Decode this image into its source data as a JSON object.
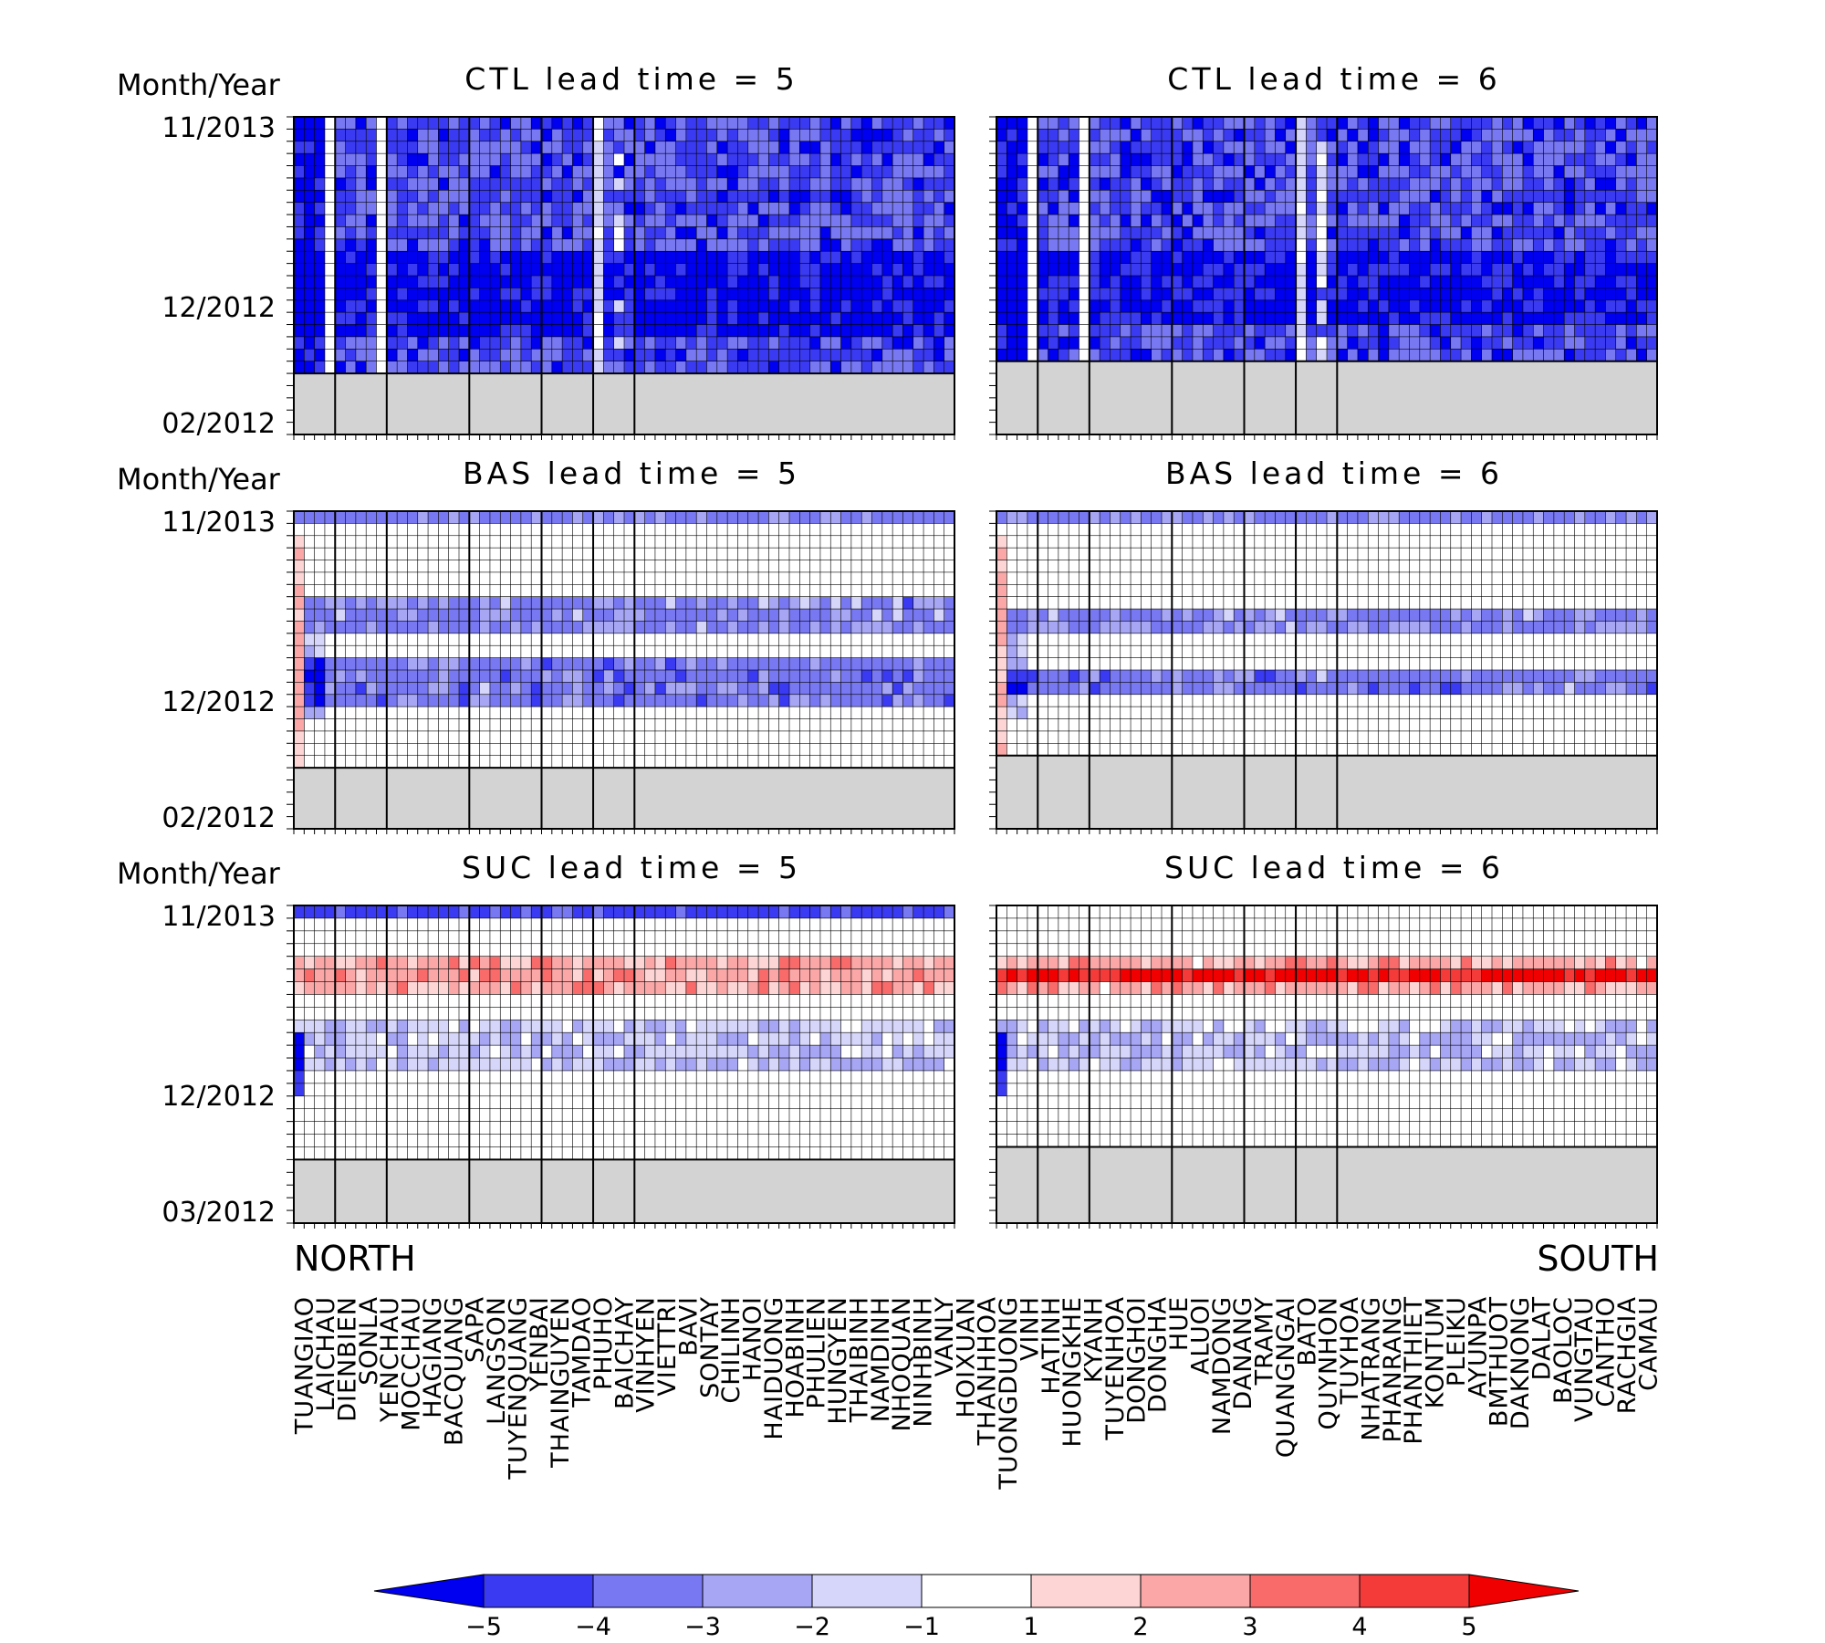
{
  "chart_data": {
    "type": "heatmap",
    "ylabel": "Month/Year",
    "x_region_left": "NORTH",
    "x_region_right": "SOUTH",
    "stations": [
      "TUANGIAO",
      "LAICHAU",
      "DIENBIEN",
      "SONLA",
      "YENCHAU",
      "MOCCHAU",
      "HAGIANG",
      "BACQUANG",
      "SAPA",
      "LANGSON",
      "TUYENQUANG",
      "YENBAI",
      "THAINGUYEN",
      "TAMDAO",
      "PHUHO",
      "BAICHAY",
      "VINHYEN",
      "VIETTRI",
      "BAVI",
      "SONTAY",
      "CHILINH",
      "HANOI",
      "HAIDUONG",
      "HOABINH",
      "PHULIEN",
      "HUNGYEN",
      "THAIBINH",
      "NAMDINH",
      "NHOQUAN",
      "NINHBINH",
      "VANLY",
      "HOIXUAN",
      "THANHHOA",
      "TUONGDUONG",
      "VINH",
      "HATINH",
      "HUONGKHE",
      "KYANH",
      "TUYENHOA",
      "DONGHOI",
      "DONGHA",
      "HUE",
      "ALUOI",
      "NAMDONG",
      "DANANG",
      "TRAMY",
      "QUANGNGAI",
      "BATO",
      "QUYNHON",
      "TUYHOA",
      "NHATRANG",
      "PHANRANG",
      "PHANTHIET",
      "KONTUM",
      "PLEIKU",
      "AYUNPA",
      "BMTHUOT",
      "DAKNONG",
      "DALAT",
      "BAOLOC",
      "VUNGTAU",
      "CANTHO",
      "RACHGIA",
      "CAMAU"
    ],
    "region_boundaries_after_station": [
      3,
      8,
      16,
      23,
      28,
      32
    ],
    "colorbar": {
      "ticks": [
        "-5",
        "-4",
        "-3",
        "-2",
        "-1",
        "1",
        "2",
        "3",
        "4",
        "5"
      ],
      "colors": [
        "#0000f0",
        "#3a3af2",
        "#7878f3",
        "#a6a6f5",
        "#d6d6fa",
        "#ffffff",
        "#fdd5d5",
        "#fba7a7",
        "#f96b6b",
        "#f53a3a",
        "#f00000"
      ]
    },
    "panels": [
      {
        "title": "CTL  lead  time  =  5",
        "ytick_top": "11/2013",
        "ytick_mid": "12/2012",
        "ytick_bottom": "02/2012",
        "months_with_data": 21,
        "months_missing": 5,
        "pattern": "ctl",
        "seed": 11
      },
      {
        "title": "CTL  lead  time  =  6",
        "ytick_top": "11/2013",
        "ytick_mid": "12/2012",
        "ytick_bottom": "",
        "months_with_data": 20,
        "months_missing": 6,
        "pattern": "ctl",
        "seed": 23
      },
      {
        "title": "BAS  lead  time  =  5",
        "ytick_top": "11/2013",
        "ytick_mid": "12/2012",
        "ytick_bottom": "02/2012",
        "months_with_data": 21,
        "months_missing": 5,
        "pattern": "bas",
        "seed": 37
      },
      {
        "title": "BAS  lead  time  =  6",
        "ytick_top": "11/2013",
        "ytick_mid": "12/2012",
        "ytick_bottom": "",
        "months_with_data": 20,
        "months_missing": 6,
        "pattern": "bas6",
        "seed": 41
      },
      {
        "title": "SUC  lead  time  =  5",
        "ytick_top": "11/2013",
        "ytick_mid": "12/2012",
        "ytick_bottom": "03/2012",
        "months_with_data": 20,
        "months_missing": 5,
        "pattern": "suc",
        "seed": 53
      },
      {
        "title": "SUC  lead  time  =  6",
        "ytick_top": "11/2013",
        "ytick_mid": "12/2012",
        "ytick_bottom": "",
        "months_with_data": 19,
        "months_missing": 6,
        "pattern": "suc6",
        "seed": 67
      }
    ]
  }
}
